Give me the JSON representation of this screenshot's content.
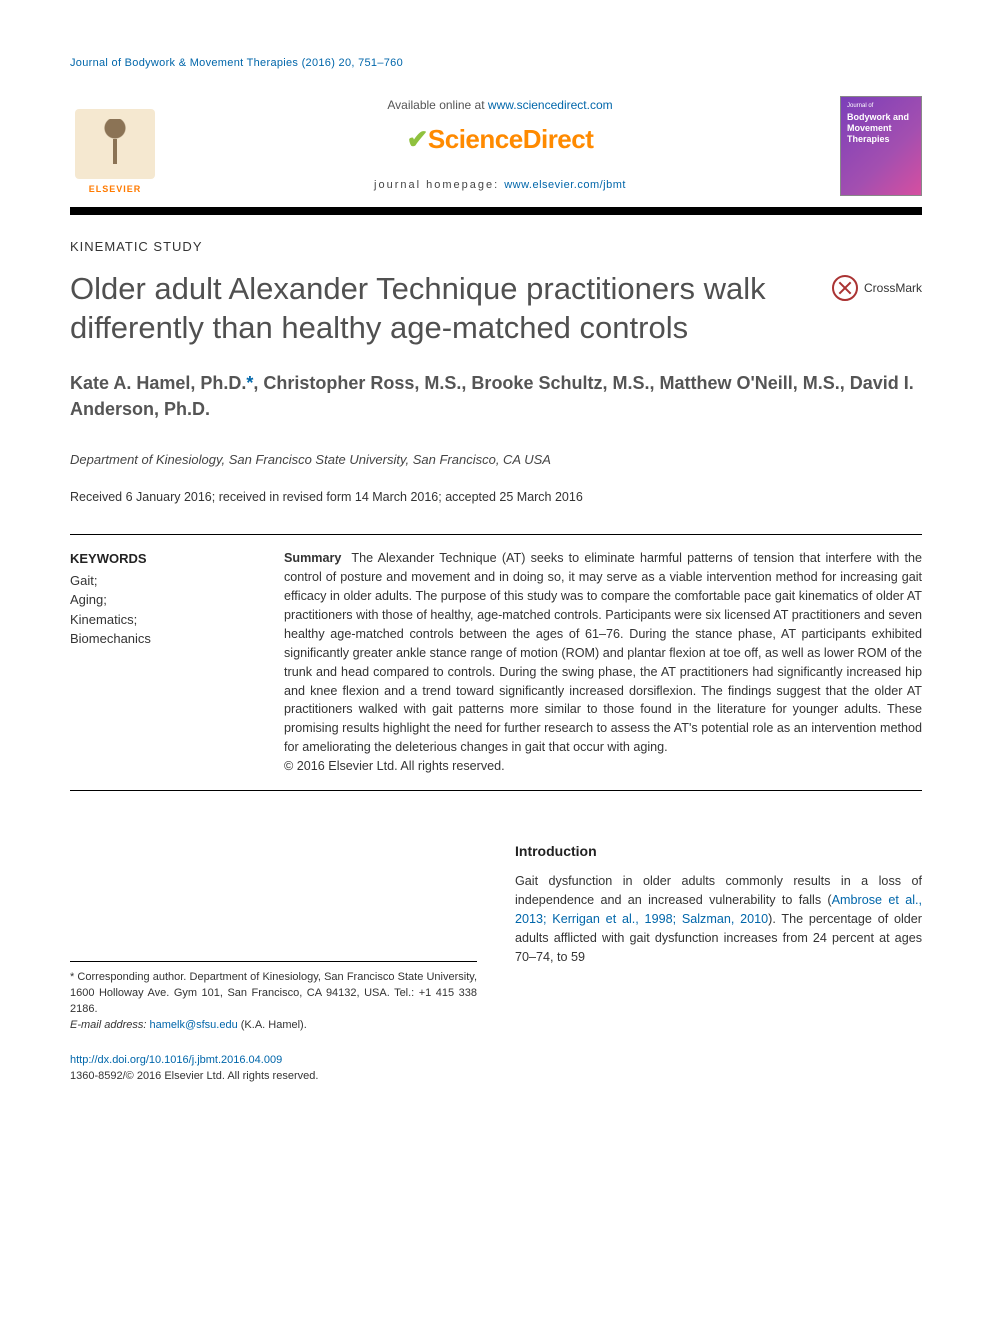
{
  "running_head": "Journal of Bodywork & Movement Therapies (2016) 20, 751–760",
  "header": {
    "available_prefix": "Available online at ",
    "available_url": "www.sciencedirect.com",
    "sd_brand_pre": "Science",
    "sd_brand_post": "Direct",
    "homepage_prefix": "journal homepage: ",
    "homepage_url": "www.elsevier.com/jbmt",
    "elsevier_label": "ELSEVIER",
    "cover_line1": "Journal of",
    "cover_line2": "Bodywork and Movement Therapies"
  },
  "section_label": "KINEMATIC STUDY",
  "title": "Older adult Alexander Technique practitioners walk differently than healthy age-matched controls",
  "crossmark_label": "CrossMark",
  "authors": "Kate A. Hamel, Ph.D.*, Christopher Ross, M.S., Brooke Schultz, M.S., Matthew O'Neill, M.S., David I. Anderson, Ph.D.",
  "affiliation": "Department of Kinesiology, San Francisco State University, San Francisco, CA USA",
  "history": "Received 6 January 2016; received in revised form 14 March 2016; accepted 25 March 2016",
  "keywords": {
    "heading": "KEYWORDS",
    "items": [
      "Gait;",
      "Aging;",
      "Kinematics;",
      "Biomechanics"
    ]
  },
  "summary_label": "Summary",
  "summary_body": "The Alexander Technique (AT) seeks to eliminate harmful patterns of tension that interfere with the control of posture and movement and in doing so, it may serve as a viable intervention method for increasing gait efficacy in older adults. The purpose of this study was to compare the comfortable pace gait kinematics of older AT practitioners with those of healthy, age-matched controls. Participants were six licensed AT practitioners and seven healthy age-matched controls between the ages of 61–76. During the stance phase, AT participants exhibited significantly greater ankle stance range of motion (ROM) and plantar flexion at toe off, as well as lower ROM of the trunk and head compared to controls. During the swing phase, the AT practitioners had significantly increased hip and knee flexion and a trend toward significantly increased dorsiflexion. The findings suggest that the older AT practitioners walked with gait patterns more similar to those found in the literature for younger adults. These promising results highlight the need for further research to assess the AT's potential role as an intervention method for ameliorating the deleterious changes in gait that occur with aging.",
  "copyright_line": "© 2016 Elsevier Ltd. All rights reserved.",
  "intro_heading": "Introduction",
  "intro_text_pre": "Gait dysfunction in older adults commonly results in a loss of independence and an increased vulnerability to falls (",
  "intro_citation": "Ambrose et al., 2013; Kerrigan et al., 1998; Salzman, 2010",
  "intro_text_post": "). The percentage of older adults afflicted with gait dysfunction increases from 24 percent at ages 70–74, to 59",
  "footnote": {
    "corresponding_label": "* Corresponding author. Department of Kinesiology, San Francisco State University, 1600 Holloway Ave. Gym 101, San Francisco, CA 94132, USA. Tel.: +1 415 338 2186.",
    "email_label": "E-mail address: ",
    "email": "hamelk@sfsu.edu",
    "email_author": " (K.A. Hamel)."
  },
  "doi": {
    "url": "http://dx.doi.org/10.1016/j.jbmt.2016.04.009",
    "issn_line": "1360-8592/© 2016 Elsevier Ltd. All rights reserved."
  },
  "colors": {
    "link": "#0066aa",
    "brand_orange": "#ff8a00",
    "rule_black": "#000000",
    "text_gray": "#505050"
  }
}
